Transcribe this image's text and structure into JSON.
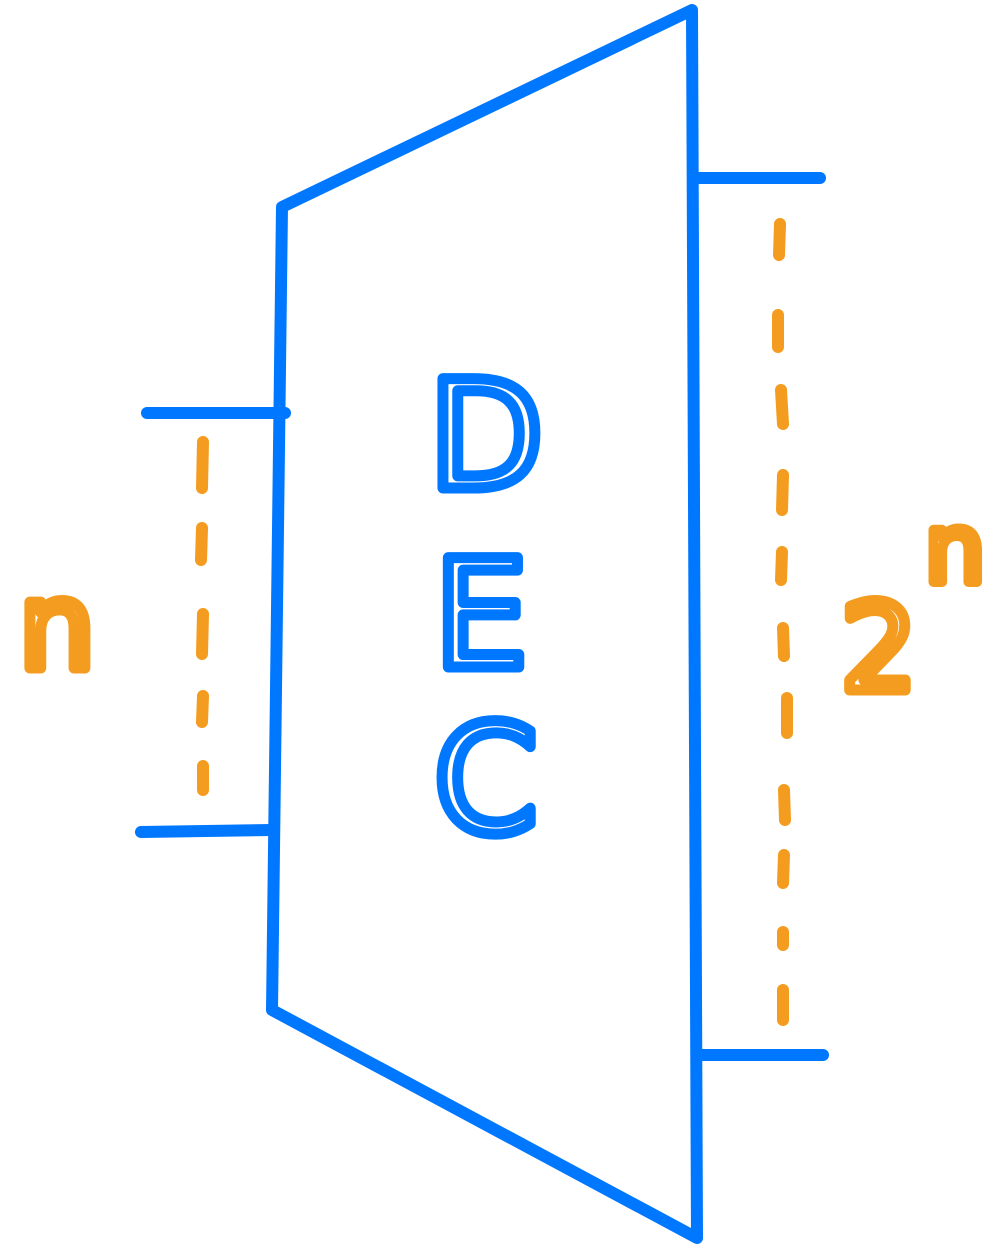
{
  "colors": {
    "outline": "#0077FF",
    "annotation": "#F39C1F",
    "background": "#FFFFFF"
  },
  "block": {
    "label_letters": [
      "D",
      "E",
      "C"
    ]
  },
  "inputs": {
    "count_label": "n"
  },
  "outputs": {
    "count_base": "2",
    "count_exponent": "n"
  }
}
